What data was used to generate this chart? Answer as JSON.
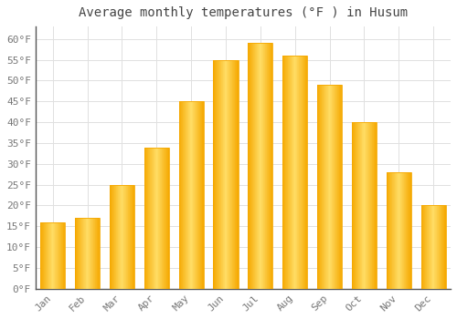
{
  "title": "Average monthly temperatures (°F ) in Husum",
  "months": [
    "Jan",
    "Feb",
    "Mar",
    "Apr",
    "May",
    "Jun",
    "Jul",
    "Aug",
    "Sep",
    "Oct",
    "Nov",
    "Dec"
  ],
  "values": [
    16,
    17,
    25,
    34,
    45,
    55,
    59,
    56,
    49,
    40,
    28,
    20
  ],
  "bar_color_center": "#FFDD66",
  "bar_color_edge": "#F5A800",
  "background_color": "#FFFFFF",
  "grid_color": "#E0E0E0",
  "ylim": [
    0,
    63
  ],
  "yticks": [
    0,
    5,
    10,
    15,
    20,
    25,
    30,
    35,
    40,
    45,
    50,
    55,
    60
  ],
  "tick_label_color": "#777777",
  "title_fontsize": 10,
  "tick_fontsize": 8,
  "font_family": "monospace"
}
